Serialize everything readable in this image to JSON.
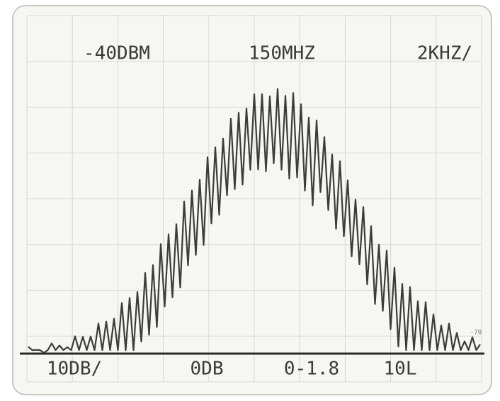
{
  "screen": {
    "top_readouts": [
      "-40DBM",
      "150MHZ",
      "2KHZ/"
    ],
    "bottom_readouts": [
      "10DB/",
      "0DB",
      "0-1.8",
      "10L"
    ],
    "right_marker": "-70"
  }
}
